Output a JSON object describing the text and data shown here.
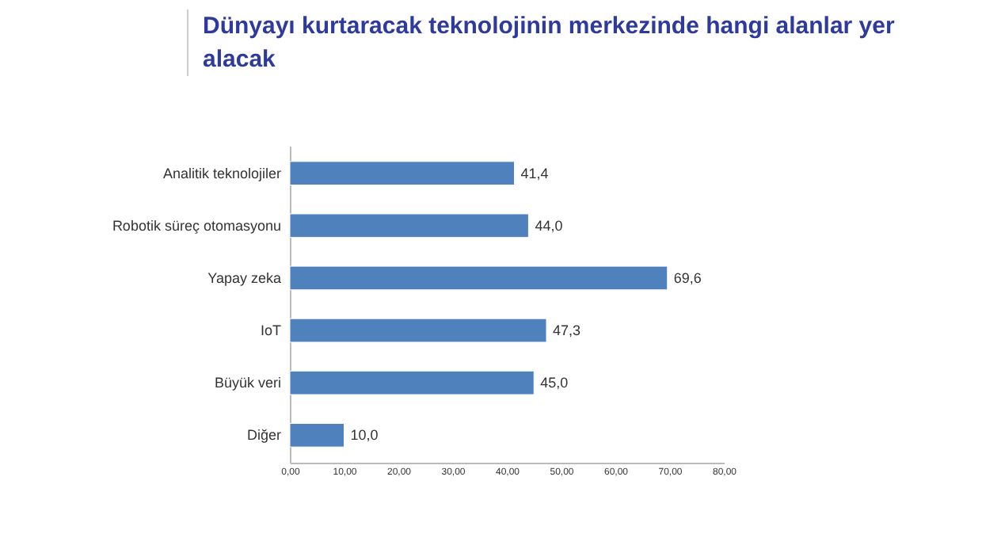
{
  "chart_data": {
    "type": "bar",
    "orientation": "horizontal",
    "title": "Dünyayı kurtaracak teknolojinin merkezinde hangi alanlar yer alacak",
    "categories": [
      "Analitik teknolojiler",
      "Robotik süreç otomasyonu",
      "Yapay zeka",
      "IoT",
      "Büyük veri",
      "Diğer"
    ],
    "values": [
      41.4,
      44.0,
      69.6,
      47.3,
      45.0,
      10.0
    ],
    "value_labels": [
      "41,4",
      "44,0",
      "69,6",
      "47,3",
      "45,0",
      "10,0"
    ],
    "color": "#4f81bd",
    "xlim": [
      0,
      80
    ],
    "xticks": [
      {
        "value": 0,
        "label": "0,00"
      },
      {
        "value": 10,
        "label": "10,00"
      },
      {
        "value": 20,
        "label": "20,00"
      },
      {
        "value": 30,
        "label": "30,00"
      },
      {
        "value": 40,
        "label": "40,00"
      },
      {
        "value": 50,
        "label": "50,00"
      },
      {
        "value": 60,
        "label": "60,00"
      },
      {
        "value": 70,
        "label": "70,00"
      },
      {
        "value": 80,
        "label": "80,00"
      }
    ],
    "grid": false
  }
}
